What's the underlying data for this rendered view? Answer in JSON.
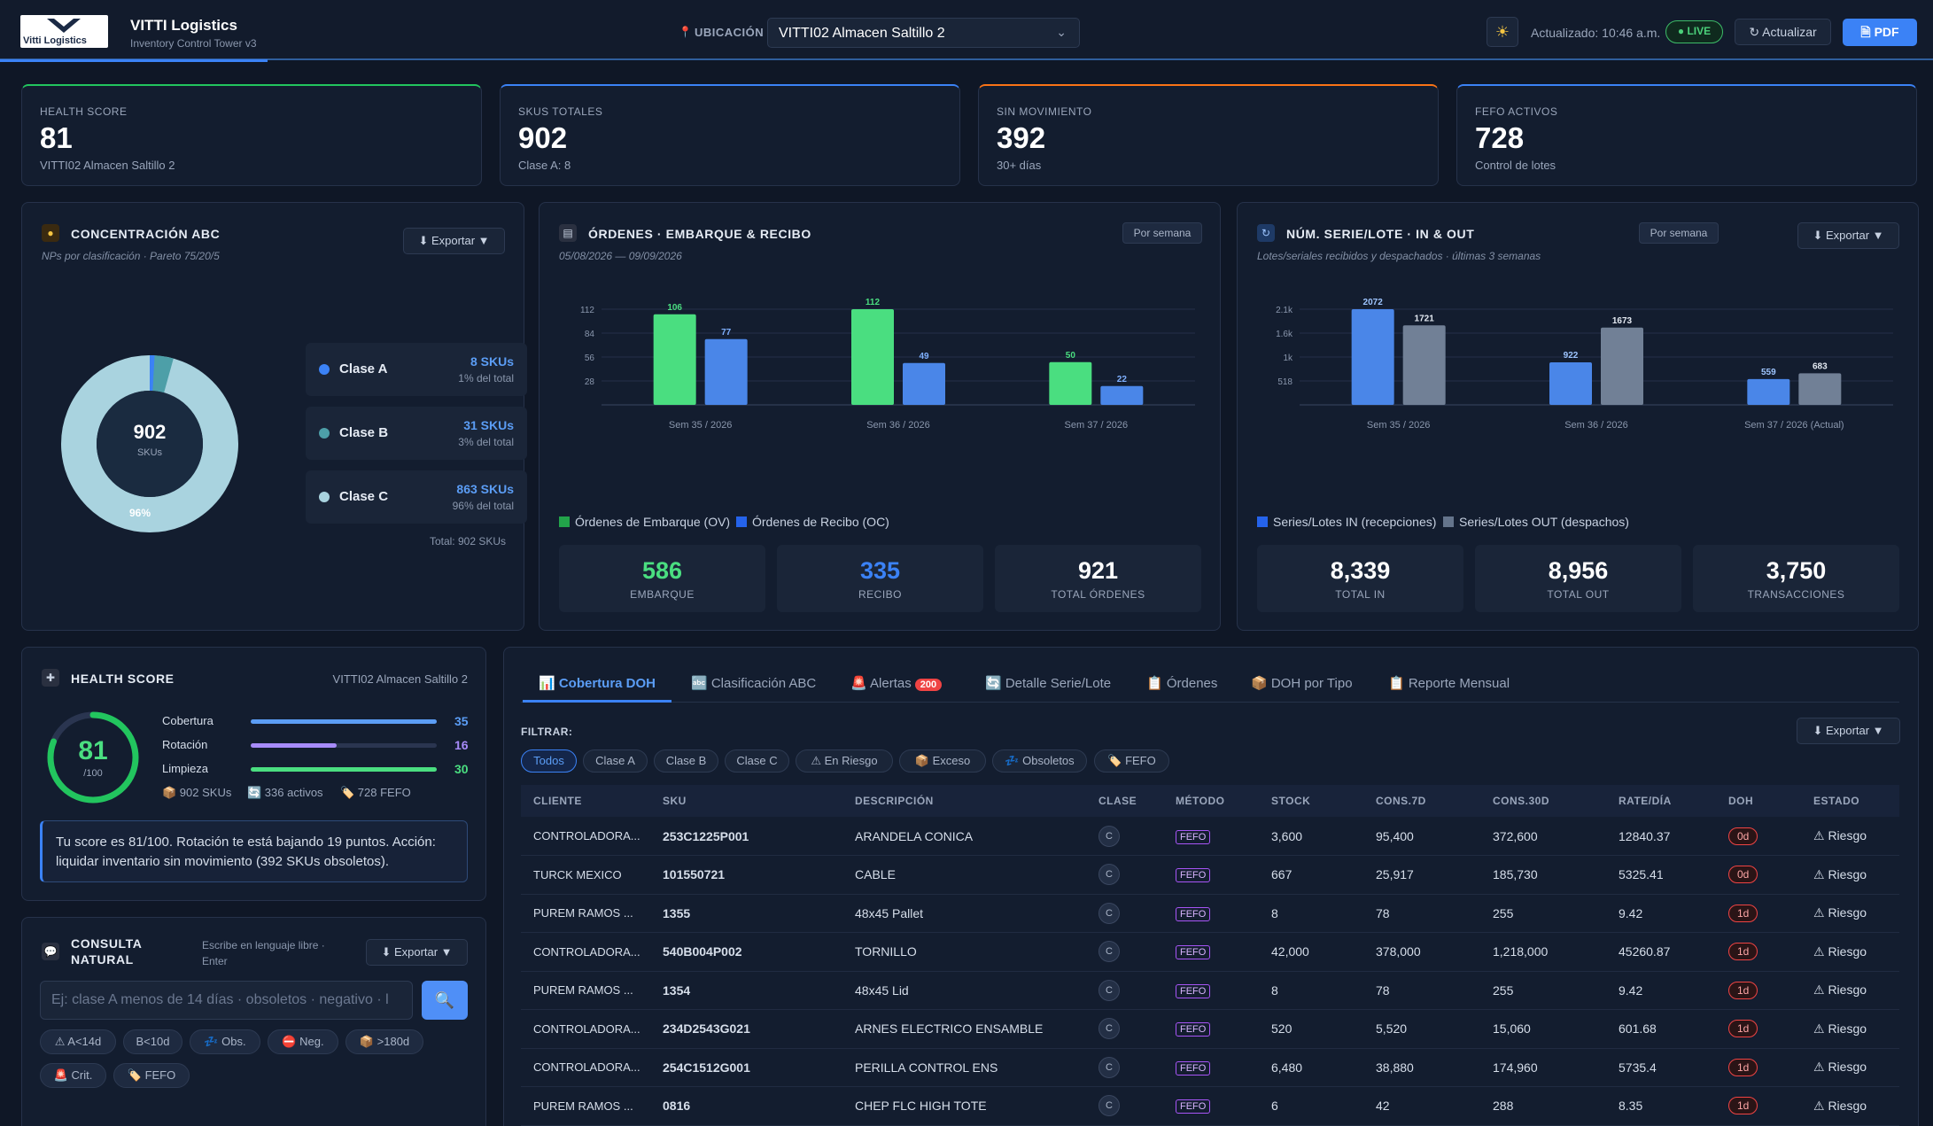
{
  "header": {
    "logo_text": "Vitti Logistics",
    "brand": "VITTI Logistics",
    "subtitle": "Inventory Control Tower v3",
    "location_label": "UBICACIÓN",
    "location_value": "VITTI02 Almacen Saltillo 2",
    "updated": "Actualizado: 10:46 a.m.",
    "live": "● LIVE",
    "refresh": "↻ Actualizar",
    "pdf": "PDF"
  },
  "kpis": [
    {
      "label": "HEALTH SCORE",
      "value": "81",
      "sub": "VITTI02 Almacen Saltillo 2",
      "accent": "#22c55e"
    },
    {
      "label": "SKUS TOTALES",
      "value": "902",
      "sub": "Clase A: 8",
      "accent": "#3b82f6"
    },
    {
      "label": "SIN MOVIMIENTO",
      "value": "392",
      "sub": "30+ días",
      "accent": "#f97316"
    },
    {
      "label": "FEFO ACTIVOS",
      "value": "728",
      "sub": "Control de lotes",
      "accent": "#3b82f6"
    }
  ],
  "abc": {
    "title": "CONCENTRACIÓN ABC",
    "subtitle": "NPs por clasificación · Pareto 75/20/5",
    "export": "⬇ Exportar ▼",
    "center_value": "902",
    "center_label": "SKUs",
    "big_pct": "96%",
    "total": "Total: 902 SKUs",
    "rows": [
      {
        "name": "Clase A",
        "skus": "8 SKUs",
        "pct": "1% del total",
        "color": "#3b82f6"
      },
      {
        "name": "Clase B",
        "skus": "31 SKUs",
        "pct": "3% del total",
        "color": "#4d9fa8"
      },
      {
        "name": "Clase C",
        "skus": "863 SKUs",
        "pct": "96% del total",
        "color": "#a9d3df"
      }
    ]
  },
  "orders": {
    "title": "ÓRDENES · EMBARQUE & RECIBO",
    "dates": "05/08/2026 — 09/09/2026",
    "period": "Por semana",
    "legend_a": "Órdenes de Embarque (OV)",
    "legend_b": "Órdenes de Recibo (OC)",
    "stats": [
      {
        "value": "586",
        "label": "EMBARQUE",
        "color": "#4ade80"
      },
      {
        "value": "335",
        "label": "RECIBO",
        "color": "#3b82f6"
      },
      {
        "value": "921",
        "label": "TOTAL ÓRDENES",
        "color": "#ffffff"
      }
    ]
  },
  "serial": {
    "title": "NÚM. SERIE/LOTE · IN & OUT",
    "subtitle": "Lotes/seriales recibidos y despachados · últimas 3 semanas",
    "period": "Por semana",
    "export": "⬇ Exportar ▼",
    "legend_a": "Series/Lotes IN (recepciones)",
    "legend_b": "Series/Lotes OUT (despachos)",
    "stats": [
      {
        "value": "8,339",
        "label": "TOTAL IN"
      },
      {
        "value": "8,956",
        "label": "TOTAL OUT"
      },
      {
        "value": "3,750",
        "label": "TRANSACCIONES"
      }
    ]
  },
  "chart_data": [
    {
      "type": "bar",
      "categories": [
        "Sem 35 / 2026",
        "Sem 36 / 2026",
        "Sem 37 / 2026"
      ],
      "series": [
        {
          "name": "Órdenes de Embarque (OV)",
          "values": [
            106,
            112,
            50
          ],
          "color": "#4ade80"
        },
        {
          "name": "Órdenes de Recibo (OC)",
          "values": [
            77,
            49,
            22
          ],
          "color": "#4a86e8"
        }
      ],
      "yticks": [
        "28",
        "56",
        "84",
        "112"
      ],
      "ylim": [
        0,
        112
      ]
    },
    {
      "type": "bar",
      "categories": [
        "Sem 35 / 2026",
        "Sem 36 / 2026",
        "Sem 37 / 2026 (Actual)"
      ],
      "series": [
        {
          "name": "Series/Lotes IN (recepciones)",
          "values": [
            2072,
            922,
            559
          ],
          "color": "#4a86e8"
        },
        {
          "name": "Series/Lotes OUT (despachos)",
          "values": [
            1721,
            1673,
            683
          ],
          "color": "#718096"
        }
      ],
      "yticks": [
        "518",
        "1k",
        "1.6k",
        "2.1k"
      ],
      "ytick_values": [
        518,
        1036,
        1554,
        2072
      ],
      "ylim": [
        0,
        2072
      ]
    }
  ],
  "health": {
    "title": "HEALTH SCORE",
    "location": "VITTI02 Almacen Saltillo 2",
    "score": "81",
    "score_den": "/100",
    "score_pct": 0.81,
    "metrics": [
      {
        "name": "Cobertura",
        "value": "35",
        "level": 1.0,
        "color": "#5b9df5"
      },
      {
        "name": "Rotación",
        "value": "16",
        "level": 0.46,
        "color": "#a78bfa"
      },
      {
        "name": "Limpieza",
        "value": "30",
        "level": 1.0,
        "color": "#4ade80"
      }
    ],
    "stats": [
      "📦 902 SKUs",
      "🔄 336 activos",
      "🏷️ 728 FEFO"
    ],
    "message": "Tu score es 81/100. Rotación te está bajando 19 puntos. Acción: liquidar inventario sin movimiento (392 SKUs obsoletos)."
  },
  "query": {
    "title_1": "CONSULTA",
    "title_2": "NATURAL",
    "hint": "Escribe en lenguaje libre · Enter",
    "export": "⬇ Exportar ▼",
    "placeholder": "Ej: clase A menos de 14 días · obsoletos · negativo · l",
    "chips": [
      "⚠ A<14d",
      "B<10d",
      "💤 Obs.",
      "⛔ Neg.",
      "📦 >180d",
      "🚨 Crit.",
      "🏷️ FEFO"
    ]
  },
  "tabs": {
    "items": [
      "📊 Cobertura DOH",
      "🔤 Clasificación ABC",
      "🚨 Alertas",
      "🔄 Detalle Serie/Lote",
      "📋 Órdenes",
      "📦 DOH por Tipo",
      "📋 Reporte Mensual"
    ],
    "alert_count": "200"
  },
  "filters": {
    "label": "FILTRAR:",
    "export": "⬇ Exportar ▼",
    "items": [
      "Todos",
      "Clase A",
      "Clase B",
      "Clase C",
      "⚠ En Riesgo",
      "📦 Exceso",
      "💤 Obsoletos",
      "🏷️ FEFO"
    ]
  },
  "table": {
    "headers": [
      "CLIENTE",
      "SKU",
      "DESCRIPCIÓN",
      "CLASE",
      "MÉTODO",
      "STOCK",
      "CONS.7D",
      "CONS.30D",
      "RATE/DÍA",
      "DOH",
      "ESTADO"
    ],
    "rows": [
      [
        "CONTROLADORA...",
        "253C1225P001",
        "ARANDELA CONICA",
        "C",
        "FEFO",
        "3,600",
        "95,400",
        "372,600",
        "12840.37",
        "0d",
        "⚠ Riesgo"
      ],
      [
        "TURCK MEXICO",
        "101550721",
        "CABLE",
        "C",
        "FEFO",
        "667",
        "25,917",
        "185,730",
        "5325.41",
        "0d",
        "⚠ Riesgo"
      ],
      [
        "PUREM RAMOS ...",
        "1355",
        "48x45 Pallet",
        "C",
        "FEFO",
        "8",
        "78",
        "255",
        "9.42",
        "1d",
        "⚠ Riesgo"
      ],
      [
        "CONTROLADORA...",
        "540B004P002",
        "TORNILLO",
        "C",
        "FEFO",
        "42,000",
        "378,000",
        "1,218,000",
        "45260.87",
        "1d",
        "⚠ Riesgo"
      ],
      [
        "PUREM RAMOS ...",
        "1354",
        "48x45 Lid",
        "C",
        "FEFO",
        "8",
        "78",
        "255",
        "9.42",
        "1d",
        "⚠ Riesgo"
      ],
      [
        "CONTROLADORA...",
        "234D2543G021",
        "ARNES ELECTRICO ENSAMBLE",
        "C",
        "FEFO",
        "520",
        "5,520",
        "15,060",
        "601.68",
        "1d",
        "⚠ Riesgo"
      ],
      [
        "CONTROLADORA...",
        "254C1512G001",
        "PERILLA CONTROL ENS",
        "C",
        "FEFO",
        "6,480",
        "38,880",
        "174,960",
        "5735.4",
        "1d",
        "⚠ Riesgo"
      ],
      [
        "PUREM RAMOS ...",
        "0816",
        "CHEP FLC HIGH TOTE",
        "C",
        "FEFO",
        "6",
        "42",
        "288",
        "8.35",
        "1d",
        "⚠ Riesgo"
      ]
    ]
  }
}
